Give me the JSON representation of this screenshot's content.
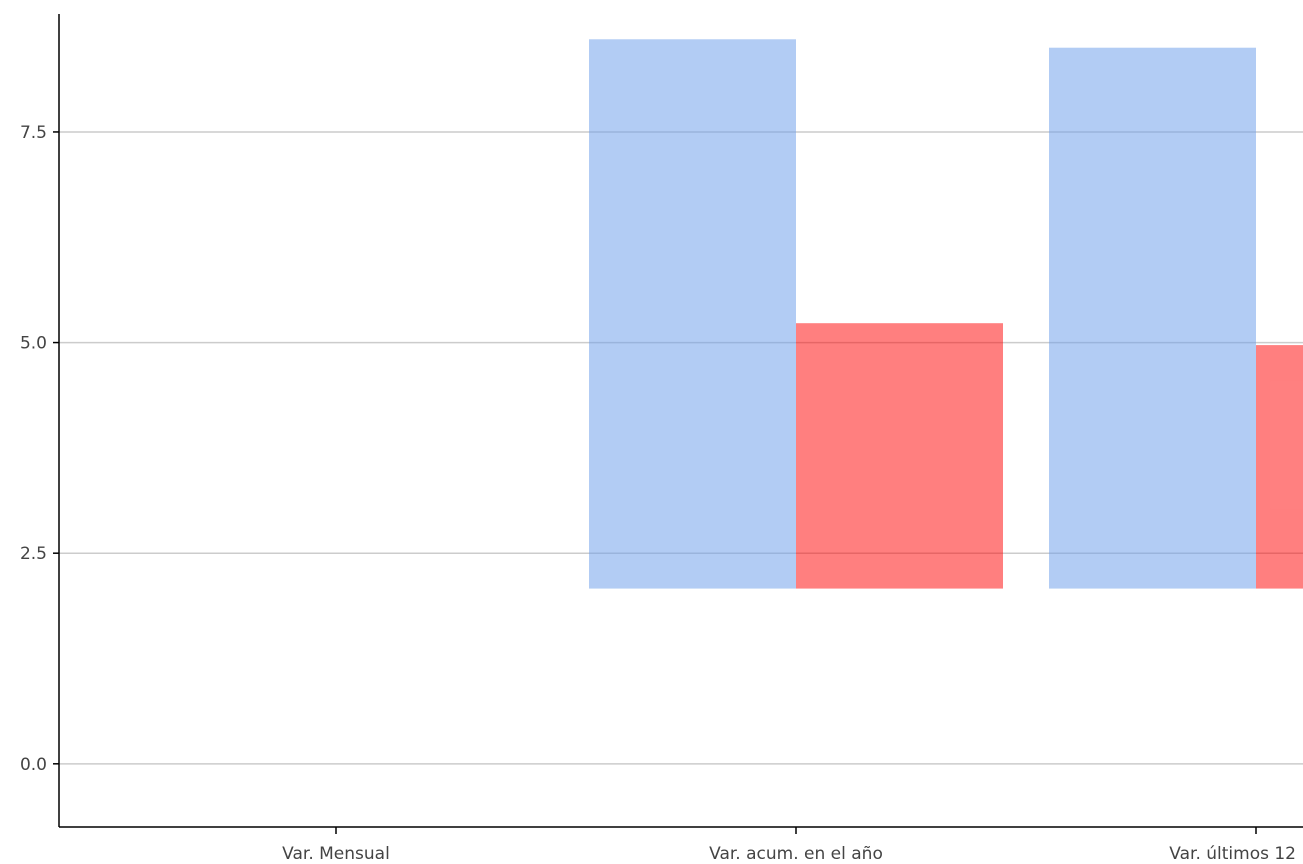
{
  "chart_data": {
    "type": "bar",
    "categories": [
      "Var. Mensual",
      "Var. acum. en el año",
      "Var. últimos 12"
    ],
    "y_ticks": [
      "0.0",
      "2.5",
      "5.0",
      "7.5"
    ],
    "ylim": [
      -0.75,
      8.9
    ],
    "grid": true,
    "base": 2.08,
    "series": [
      {
        "color": "#6d9eeb",
        "opacity": 0.53,
        "values": [
          null,
          8.6,
          8.5
        ]
      },
      {
        "color": "#ff0000",
        "opacity": 0.5,
        "values": [
          null,
          5.23,
          4.97
        ]
      }
    ]
  }
}
